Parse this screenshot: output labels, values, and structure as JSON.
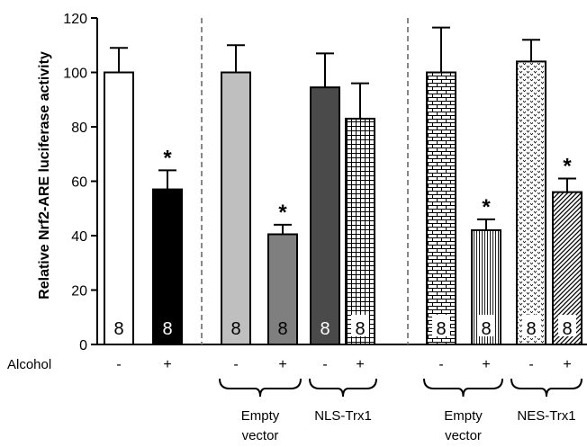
{
  "chart_data": {
    "type": "bar",
    "ylabel": "Relative Nrf2-ARE luciferase activity",
    "ylim": [
      0,
      120
    ],
    "yticks": [
      "0",
      "20",
      "40",
      "60",
      "80",
      "100",
      "120"
    ],
    "row_label": "Alcohol",
    "group_labels": [
      {
        "line1": "Empty",
        "line2": "vector"
      },
      {
        "line1": "NLS-Trx1",
        "line2": ""
      },
      {
        "line1": "Empty",
        "line2": "vector"
      },
      {
        "line1": "NES-Trx1",
        "line2": ""
      }
    ],
    "bars": [
      {
        "alcohol": "-",
        "value": 100,
        "error": 9,
        "n": "8",
        "star": "",
        "fill": "#ffffff",
        "pattern": "none",
        "ncolor": "#000000"
      },
      {
        "alcohol": "+",
        "value": 57,
        "error": 7,
        "n": "8",
        "star": "*",
        "fill": "#000000",
        "pattern": "none",
        "ncolor": "#ffffff"
      },
      {
        "alcohol": "-",
        "value": 100,
        "error": 10,
        "n": "8",
        "star": "",
        "fill": "#bfbfbf",
        "pattern": "none",
        "ncolor": "#000000"
      },
      {
        "alcohol": "+",
        "value": 40.5,
        "error": 3.5,
        "n": "8",
        "star": "*",
        "fill": "#7f7f7f",
        "pattern": "none",
        "ncolor": "#000000"
      },
      {
        "alcohol": "-",
        "value": 94.5,
        "error": 12.5,
        "n": "8",
        "star": "",
        "fill": "#4a4a4a",
        "pattern": "none",
        "ncolor": "#ffffff"
      },
      {
        "alcohol": "+",
        "value": 83,
        "error": 13,
        "n": "8",
        "star": "",
        "fill": "#ffffff",
        "pattern": "grid",
        "ncolor": "#000000"
      },
      {
        "alcohol": "-",
        "value": 100,
        "error": 16.5,
        "n": "8",
        "star": "",
        "fill": "#ffffff",
        "pattern": "brick",
        "ncolor": "#000000"
      },
      {
        "alcohol": "+",
        "value": 42,
        "error": 4,
        "n": "8",
        "star": "*",
        "fill": "#ffffff",
        "pattern": "vlines",
        "ncolor": "#000000"
      },
      {
        "alcohol": "-",
        "value": 104,
        "error": 8,
        "n": "8",
        "star": "",
        "fill": "#ffffff",
        "pattern": "dots",
        "ncolor": "#000000"
      },
      {
        "alcohol": "+",
        "value": 56,
        "error": 5,
        "n": "8",
        "star": "*",
        "fill": "#ffffff",
        "pattern": "diag",
        "ncolor": "#000000"
      }
    ]
  }
}
